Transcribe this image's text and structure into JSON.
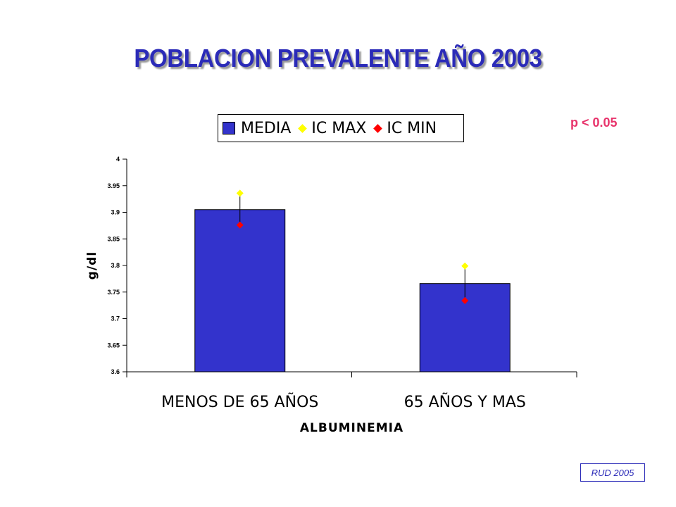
{
  "title": "POBLACION PREVALENTE AÑO 2003",
  "p_value": "p  < 0.05",
  "credit": "RUD 2005",
  "colors": {
    "bar": "#3333cc",
    "ic_max": "#ffff00",
    "ic_min": "#ff0000",
    "title": "#2b2bb8",
    "p_value": "#e8336b"
  },
  "chart_data": {
    "type": "bar",
    "categories": [
      "MENOS DE 65 AÑOS",
      "65 AÑOS Y MAS"
    ],
    "series": [
      {
        "name": "MEDIA",
        "values": [
          3.905,
          3.766
        ]
      },
      {
        "name": "IC MAX",
        "values": [
          3.936,
          3.799
        ]
      },
      {
        "name": "IC MIN",
        "values": [
          3.876,
          3.734
        ]
      }
    ],
    "xlabel": "ALBUMINEMIA",
    "ylabel": "g/dl",
    "ylim": [
      3.6,
      4.0
    ],
    "yticks": [
      "3.6",
      "3.65",
      "3.7",
      "3.75",
      "3.8",
      "3.85",
      "3.9",
      "3.95",
      "4"
    ],
    "legend_position": "top",
    "grid": false
  }
}
